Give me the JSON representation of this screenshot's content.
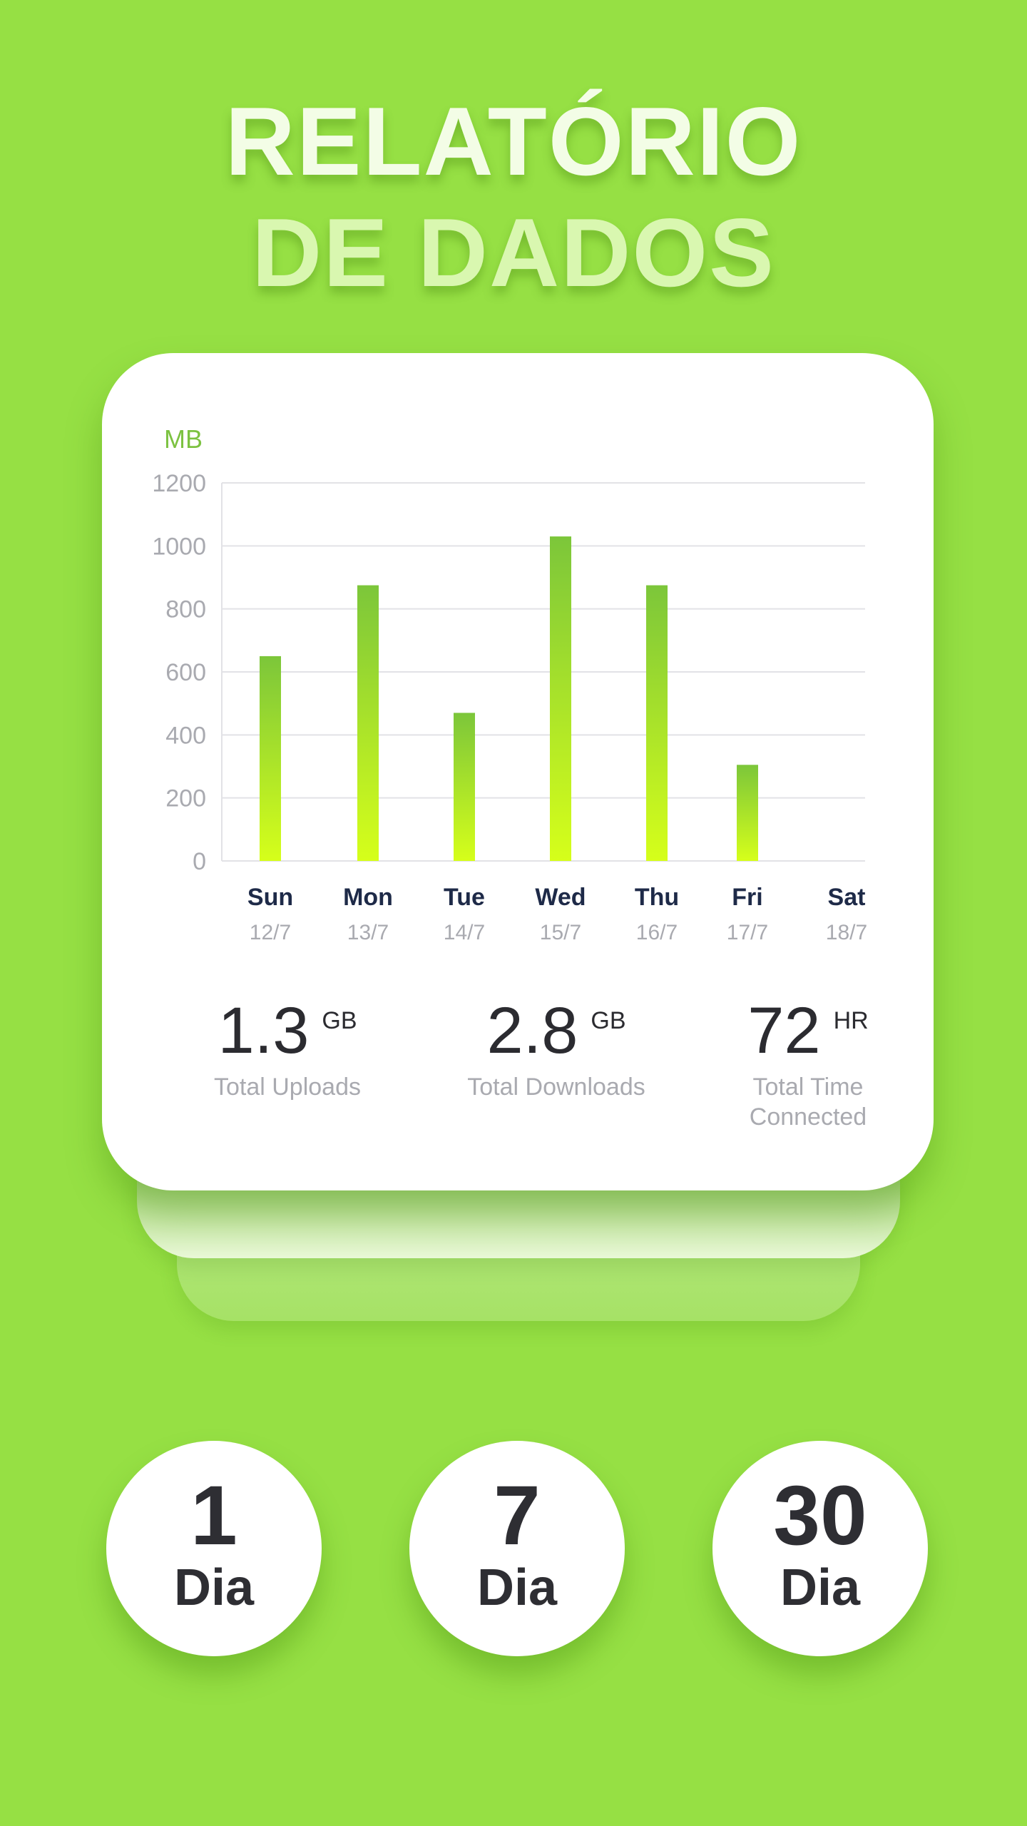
{
  "title": {
    "line1": "RELATÓRIO",
    "line2": "DE DADOS"
  },
  "chart_data": {
    "type": "bar",
    "ylabel": "MB",
    "ylim": [
      0,
      1200
    ],
    "yticks": [
      0,
      200,
      400,
      600,
      800,
      1000,
      1200
    ],
    "categories": [
      "Sun",
      "Mon",
      "Tue",
      "Wed",
      "Thu",
      "Fri",
      "Sat"
    ],
    "dates": [
      "12/7",
      "13/7",
      "14/7",
      "15/7",
      "16/7",
      "17/7",
      "18/7"
    ],
    "values": [
      650,
      875,
      470,
      1030,
      875,
      305,
      0
    ],
    "grid": true,
    "colors": {
      "bar_top": "#7cc63a",
      "bar_bottom": "#d6ff1a",
      "grid": "#e2e2e6",
      "axis_text": "#a9aab0",
      "day_text": "#1e2a48"
    }
  },
  "stats": [
    {
      "value": "1.3",
      "unit": "GB",
      "label": "Total Uploads"
    },
    {
      "value": "2.8",
      "unit": "GB",
      "label": "Total Downloads"
    },
    {
      "value": "72",
      "unit": "HR",
      "label": "Total Time\nConnected"
    }
  ],
  "periods": [
    {
      "number": "1",
      "unit": "Dia"
    },
    {
      "number": "7",
      "unit": "Dia"
    },
    {
      "number": "30",
      "unit": "Dia"
    }
  ]
}
